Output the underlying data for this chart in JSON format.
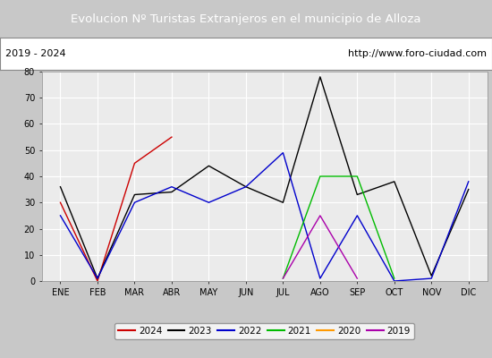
{
  "title": "Evolucion Nº Turistas Extranjeros en el municipio de Alloza",
  "title_color": "#ffffff",
  "title_bg_color": "#4a6fa5",
  "subtitle_left": "2019 - 2024",
  "subtitle_right": "http://www.foro-ciudad.com",
  "months": [
    "ENE",
    "FEB",
    "MAR",
    "ABR",
    "MAY",
    "JUN",
    "JUL",
    "AGO",
    "SEP",
    "OCT",
    "NOV",
    "DIC"
  ],
  "ylim": [
    0,
    80
  ],
  "yticks": [
    0,
    10,
    20,
    30,
    40,
    50,
    60,
    70,
    80
  ],
  "series": {
    "2024": {
      "color": "#cc0000",
      "data": [
        30,
        0,
        45,
        55,
        null,
        null,
        null,
        null,
        null,
        null,
        null,
        null
      ]
    },
    "2023": {
      "color": "#000000",
      "data": [
        36,
        1,
        33,
        34,
        44,
        36,
        30,
        78,
        33,
        38,
        2,
        35
      ]
    },
    "2022": {
      "color": "#0000cc",
      "data": [
        25,
        1,
        30,
        36,
        30,
        36,
        49,
        1,
        25,
        0,
        1,
        38
      ]
    },
    "2021": {
      "color": "#00bb00",
      "data": [
        null,
        null,
        null,
        null,
        null,
        null,
        1,
        40,
        40,
        1,
        null,
        null
      ]
    },
    "2020": {
      "color": "#ff9900",
      "data": [
        null,
        null,
        null,
        null,
        null,
        null,
        1,
        null,
        null,
        null,
        null,
        null
      ]
    },
    "2019": {
      "color": "#aa00aa",
      "data": [
        null,
        null,
        null,
        null,
        null,
        null,
        1,
        25,
        1,
        null,
        null,
        null
      ]
    }
  },
  "legend_order": [
    "2024",
    "2023",
    "2022",
    "2021",
    "2020",
    "2019"
  ],
  "fig_bg_color": "#c8c8c8",
  "plot_bg_color": "#ebebeb",
  "grid_color": "#ffffff",
  "subtitle_bg": "#ffffff",
  "subtitle_border": "#888888"
}
